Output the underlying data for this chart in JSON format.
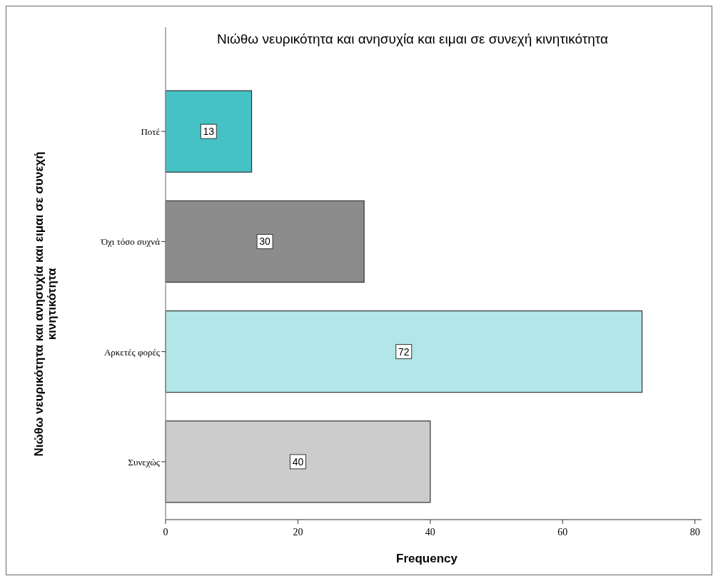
{
  "chart_data": {
    "type": "bar",
    "orientation": "horizontal",
    "title": "Νιώθω νευρικότητα και ανησυχία και ειμαι σε συνεχή κινητικότητα",
    "xlabel": "Frequency",
    "ylabel": "Νιώθω νευρικότητα και ανησυχία και ειμαι σε συνεχή κινητικότητα",
    "categories": [
      "Ποτέ",
      "Όχι τόσο συχνά",
      "Αρκετές φορές",
      "Συνεχώς"
    ],
    "values": [
      13,
      30,
      72,
      40
    ],
    "colors": [
      "#45c2c5",
      "#8c8c8c",
      "#b3e6e8",
      "#cccccc"
    ],
    "xlim": [
      0,
      81
    ],
    "xticks": [
      0,
      20,
      40,
      60,
      80
    ],
    "data_labels": true
  }
}
